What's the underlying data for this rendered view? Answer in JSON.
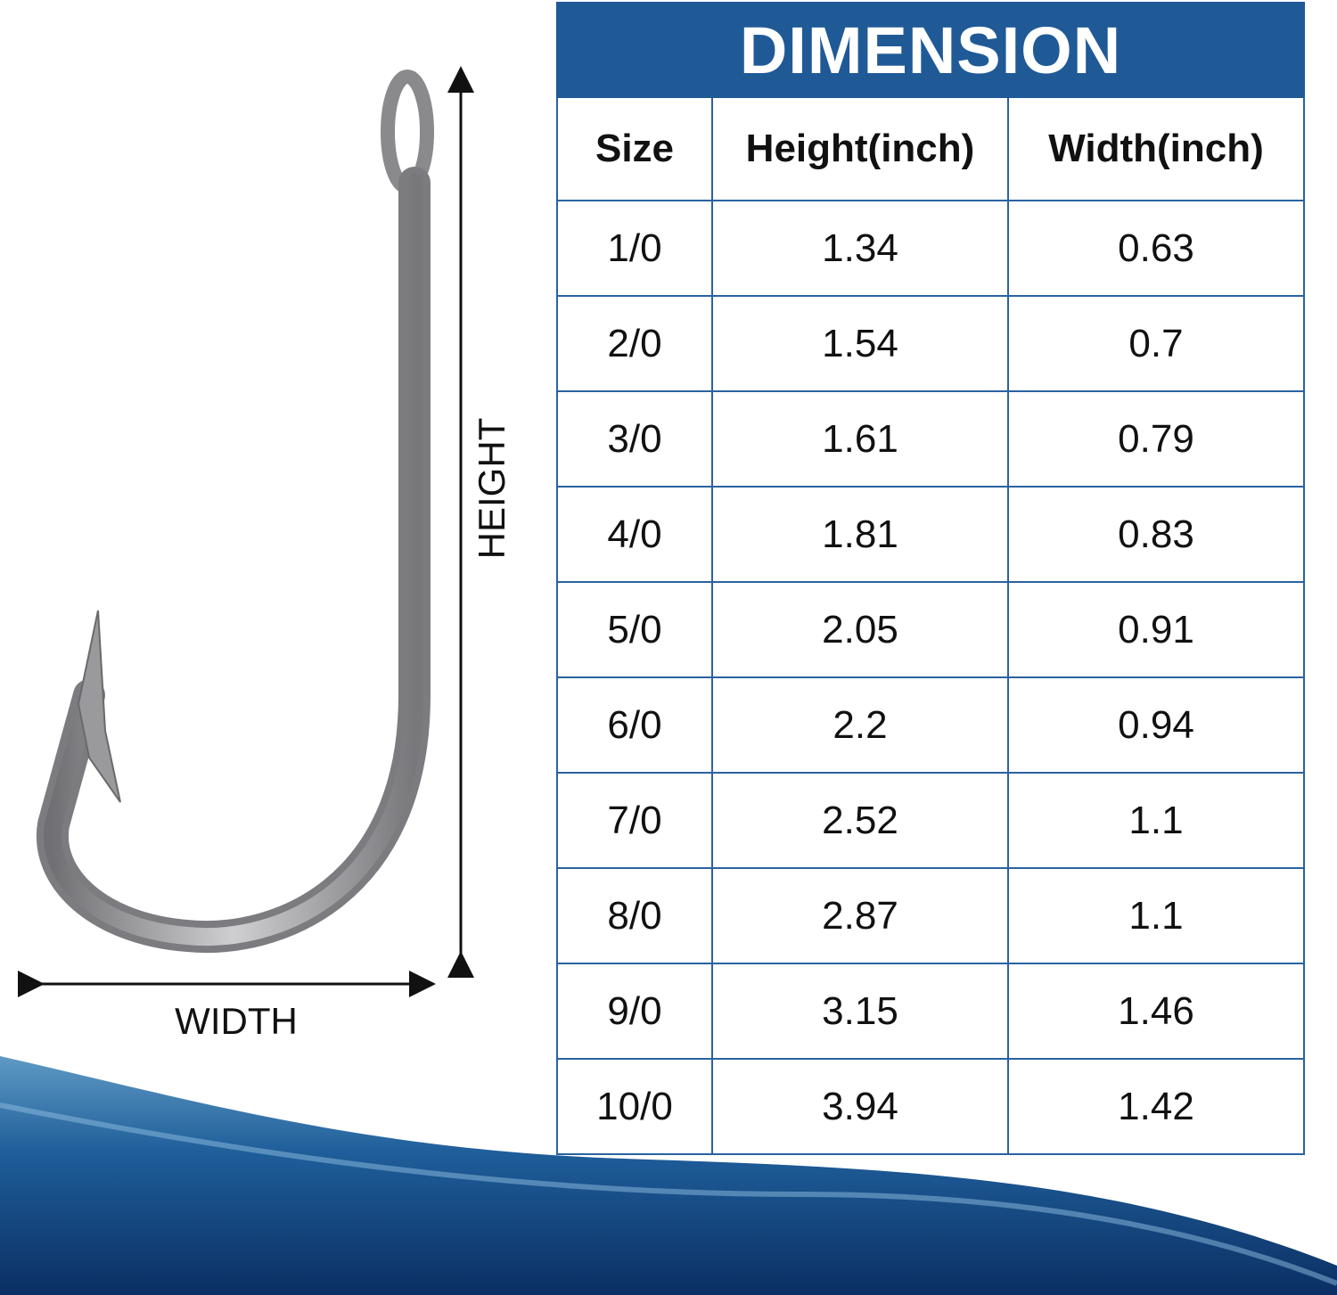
{
  "table": {
    "title": "DIMENSION",
    "columns": [
      "Size",
      "Height(inch)",
      "Width(inch)"
    ],
    "rows": [
      [
        "1/0",
        1.34,
        0.63
      ],
      [
        "2/0",
        1.54,
        0.7
      ],
      [
        "3/0",
        1.61,
        0.79
      ],
      [
        "4/0",
        1.81,
        0.83
      ],
      [
        "5/0",
        2.05,
        0.91
      ],
      [
        "6/0",
        2.2,
        0.94
      ],
      [
        "7/0",
        2.52,
        1.1
      ],
      [
        "8/0",
        2.87,
        1.1
      ],
      [
        "9/0",
        3.15,
        1.46
      ],
      [
        "10/0",
        3.94,
        1.42
      ]
    ]
  },
  "diagram": {
    "height_label": "HEIGHT",
    "width_label": "WIDTH"
  }
}
